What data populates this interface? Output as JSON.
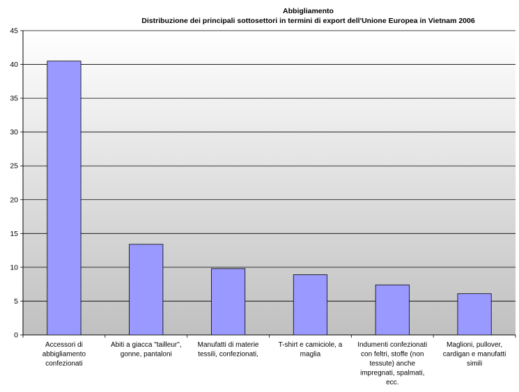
{
  "chart_data": {
    "type": "bar",
    "title_lines": [
      "Abbigliamento",
      "Distribuzione dei  principali sottosettori in termini di export dell'Unione Europea in Vietnam  2006"
    ],
    "title": "Abbigliamento — Distribuzione dei  principali sottosettori in termini di export dell'Unione Europea in Vietnam  2006",
    "xlabel": "",
    "ylabel": "",
    "ylim": [
      0,
      45
    ],
    "yticks": [
      0,
      5,
      10,
      15,
      20,
      25,
      30,
      35,
      40,
      45
    ],
    "grid": true,
    "legend": "none",
    "categories": [
      [
        "Accessori di",
        "abbigliamento",
        "confezionati"
      ],
      [
        "Abiti a giacca \"tailleur\",",
        "gonne, pantaloni"
      ],
      [
        "Manufatti di materie",
        "tessili, confezionati,"
      ],
      [
        "T-shirt e camiciole, a",
        "maglia"
      ],
      [
        "Indumenti confezionati",
        "con feltri, stoffe (non",
        "tessute) anche",
        "impregnati, spalmati,",
        "ecc."
      ],
      [
        "Maglioni, pullover,",
        "cardigan e manufatti",
        "simili"
      ]
    ],
    "values": [
      40.5,
      13.4,
      9.8,
      8.9,
      7.4,
      6.1
    ],
    "colors": {
      "bar_fill": "#9999ff",
      "bar_stroke": "#000000",
      "grid": "#000000",
      "plot_top": "#ffffff",
      "plot_bottom": "#c0c0c0"
    }
  }
}
